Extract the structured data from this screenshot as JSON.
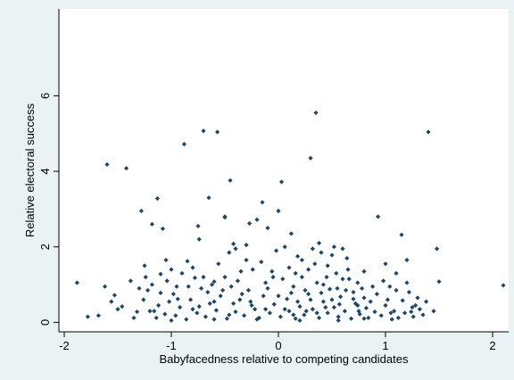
{
  "chart_data": {
    "type": "scatter",
    "title": "",
    "xlabel": "Babyfacedness relative to competing candidates",
    "ylabel": "Relative electoral success",
    "xlim": [
      -2.05,
      2.15
    ],
    "ylim": [
      -0.25,
      8.3
    ],
    "xticks": [
      -2,
      -1,
      0,
      1,
      2
    ],
    "yticks": [
      0,
      2,
      4,
      6
    ],
    "grid": false,
    "legend": "none",
    "colors": {
      "marker": "#1a476f",
      "frame_background": "#eaf2f3",
      "plot_background": "#ffffff",
      "axis": "#000000"
    },
    "series": [
      {
        "points": [
          [
            -1.88,
            1.05
          ],
          [
            -1.78,
            0.15
          ],
          [
            -1.68,
            0.18
          ],
          [
            -1.6,
            4.18
          ],
          [
            -1.56,
            0.55
          ],
          [
            -1.53,
            0.72
          ],
          [
            -1.5,
            0.35
          ],
          [
            -1.42,
            4.08
          ],
          [
            -1.38,
            1.1
          ],
          [
            -1.35,
            0.12
          ],
          [
            -1.32,
            0.28
          ],
          [
            -1.28,
            2.95
          ],
          [
            -1.25,
            1.5
          ],
          [
            -1.22,
            0.85
          ],
          [
            -1.18,
            2.6
          ],
          [
            -1.16,
            0.3
          ],
          [
            -1.13,
            3.28
          ],
          [
            -1.1,
            1.28
          ],
          [
            -1.08,
            2.48
          ],
          [
            -1.05,
            1.65
          ],
          [
            -1.0,
            1.4
          ],
          [
            -0.95,
            0.95
          ],
          [
            -0.88,
            4.72
          ],
          [
            -0.85,
            1.62
          ],
          [
            -0.78,
            1.18
          ],
          [
            -0.75,
            2.55
          ],
          [
            -0.74,
            2.2
          ],
          [
            -0.7,
            5.07
          ],
          [
            -0.65,
            3.3
          ],
          [
            -0.6,
            1.08
          ],
          [
            -0.57,
            5.04
          ],
          [
            -0.5,
            2.78
          ],
          [
            -0.45,
            3.76
          ],
          [
            -0.42,
            2.08
          ],
          [
            -0.35,
            1.35
          ],
          [
            -0.3,
            1.65
          ],
          [
            -0.27,
            2.62
          ],
          [
            -0.25,
            0.45
          ],
          [
            -0.2,
            2.72
          ],
          [
            -0.15,
            3.18
          ],
          [
            -0.12,
            1.05
          ],
          [
            -0.1,
            2.5
          ],
          [
            -0.05,
            1.2
          ],
          [
            0.0,
            2.95
          ],
          [
            0.03,
            3.72
          ],
          [
            0.06,
            2.0
          ],
          [
            0.12,
            2.35
          ],
          [
            0.18,
            1.75
          ],
          [
            0.22,
            1.2
          ],
          [
            0.25,
            0.85
          ],
          [
            0.3,
            4.35
          ],
          [
            0.35,
            5.55
          ],
          [
            0.4,
            1.85
          ],
          [
            0.45,
            1.2
          ],
          [
            0.5,
            1.78
          ],
          [
            0.55,
            0.9
          ],
          [
            0.6,
            1.95
          ],
          [
            0.65,
            1.4
          ],
          [
            0.7,
            0.8
          ],
          [
            0.75,
            0.3
          ],
          [
            0.8,
            0.65
          ],
          [
            0.88,
            0.95
          ],
          [
            0.93,
            2.8
          ],
          [
            0.98,
            1.1
          ],
          [
            1.02,
            0.6
          ],
          [
            1.05,
            0.25
          ],
          [
            1.1,
            0.85
          ],
          [
            1.15,
            2.32
          ],
          [
            1.2,
            1.65
          ],
          [
            1.25,
            0.4
          ],
          [
            1.3,
            0.65
          ],
          [
            1.35,
            0.2
          ],
          [
            1.4,
            5.04
          ],
          [
            1.45,
            0.3
          ],
          [
            1.48,
            1.95
          ],
          [
            1.5,
            1.08
          ],
          [
            2.1,
            0.98
          ],
          [
            -1.2,
            0.3
          ],
          [
            -1.14,
            0.12
          ],
          [
            -1.06,
            0.22
          ],
          [
            -1.02,
            0.55
          ],
          [
            -0.96,
            0.18
          ],
          [
            -0.92,
            0.4
          ],
          [
            -0.86,
            0.08
          ],
          [
            -0.82,
            0.6
          ],
          [
            -0.76,
            0.25
          ],
          [
            -0.72,
            0.9
          ],
          [
            -0.68,
            0.15
          ],
          [
            -0.64,
            0.5
          ],
          [
            -0.58,
            0.32
          ],
          [
            -0.54,
            0.7
          ],
          [
            -0.48,
            0.1
          ],
          [
            -0.44,
            0.95
          ],
          [
            -0.4,
            0.28
          ],
          [
            -0.36,
            0.6
          ],
          [
            -0.32,
            0.18
          ],
          [
            -0.28,
            0.85
          ],
          [
            -0.22,
            0.35
          ],
          [
            -0.18,
            0.12
          ],
          [
            -0.14,
            0.7
          ],
          [
            -0.08,
            0.25
          ],
          [
            -0.04,
            0.48
          ],
          [
            0.02,
            0.15
          ],
          [
            0.08,
            0.62
          ],
          [
            0.1,
            0.3
          ],
          [
            0.14,
            0.95
          ],
          [
            0.16,
            0.1
          ],
          [
            0.2,
            0.42
          ],
          [
            0.24,
            0.2
          ],
          [
            0.28,
            0.75
          ],
          [
            0.32,
            0.35
          ],
          [
            0.36,
            1.05
          ],
          [
            0.38,
            0.12
          ],
          [
            0.42,
            0.55
          ],
          [
            0.46,
            0.25
          ],
          [
            0.48,
            0.88
          ],
          [
            0.52,
            0.4
          ],
          [
            0.56,
            0.15
          ],
          [
            0.58,
            0.68
          ],
          [
            0.62,
            0.3
          ],
          [
            0.66,
            1.15
          ],
          [
            0.68,
            0.1
          ],
          [
            0.72,
            0.5
          ],
          [
            0.76,
            0.22
          ],
          [
            0.78,
            0.9
          ],
          [
            0.82,
            0.38
          ],
          [
            0.84,
            0.12
          ],
          [
            0.86,
            0.55
          ],
          [
            0.9,
            0.28
          ],
          [
            0.92,
            0.75
          ],
          [
            0.96,
            0.18
          ],
          [
            1.0,
            0.45
          ],
          [
            1.04,
            0.95
          ],
          [
            1.08,
            0.3
          ],
          [
            1.12,
            0.12
          ],
          [
            1.16,
            0.58
          ],
          [
            1.18,
            0.25
          ],
          [
            1.22,
            0.8
          ],
          [
            1.26,
            0.15
          ],
          [
            1.28,
            0.45
          ],
          [
            1.32,
            0.35
          ],
          [
            1.38,
            0.55
          ],
          [
            -1.26,
            0.6
          ],
          [
            -1.18,
            1.0
          ],
          [
            -1.1,
            0.78
          ],
          [
            -1.04,
            1.1
          ],
          [
            -0.98,
            0.75
          ],
          [
            -0.9,
            1.3
          ],
          [
            -0.84,
            0.95
          ],
          [
            -0.8,
            1.45
          ],
          [
            -0.7,
            1.2
          ],
          [
            -0.62,
            1.0
          ],
          [
            -0.56,
            1.55
          ],
          [
            -0.5,
            1.2
          ],
          [
            -0.46,
            1.85
          ],
          [
            -0.38,
            1.1
          ],
          [
            -0.34,
            0.75
          ],
          [
            -0.24,
            1.4
          ],
          [
            -0.16,
            1.6
          ],
          [
            -0.06,
            1.35
          ],
          [
            0.04,
            1.15
          ],
          [
            0.1,
            1.45
          ],
          [
            0.16,
            1.3
          ],
          [
            0.22,
            1.65
          ],
          [
            0.28,
            1.4
          ],
          [
            0.34,
            1.55
          ],
          [
            0.42,
            1.0
          ],
          [
            0.46,
            1.5
          ],
          [
            0.54,
            1.3
          ],
          [
            0.6,
            1.15
          ],
          [
            0.64,
            1.7
          ],
          [
            0.74,
            1.05
          ],
          [
            0.8,
            1.35
          ],
          [
            1.0,
            1.55
          ],
          [
            1.1,
            1.3
          ],
          [
            1.2,
            1.05
          ],
          [
            -0.66,
            0.8
          ],
          [
            -0.6,
            0.55
          ],
          [
            -0.52,
            0.85
          ],
          [
            -0.42,
            0.5
          ],
          [
            -0.26,
            0.55
          ],
          [
            -0.1,
            0.9
          ],
          [
            0.0,
            0.7
          ],
          [
            0.06,
            0.35
          ],
          [
            0.12,
            0.78
          ],
          [
            0.18,
            0.55
          ],
          [
            0.26,
            0.3
          ],
          [
            0.3,
            0.6
          ],
          [
            0.4,
            0.78
          ],
          [
            0.44,
            0.4
          ],
          [
            0.5,
            0.6
          ],
          [
            0.57,
            0.48
          ],
          [
            0.63,
            0.85
          ],
          [
            0.7,
            0.62
          ],
          [
            0.74,
            0.45
          ],
          [
            -0.02,
            1.9
          ],
          [
            -0.3,
            2.05
          ],
          [
            0.52,
            2.0
          ],
          [
            0.38,
            2.1
          ],
          [
            -0.5,
            2.8
          ],
          [
            -0.4,
            1.95
          ],
          [
            0.32,
            1.95
          ],
          [
            -0.8,
            0.35
          ],
          [
            -0.94,
            0.62
          ],
          [
            -1.3,
            0.9
          ],
          [
            -1.24,
            1.2
          ],
          [
            -1.12,
            0.45
          ],
          [
            -0.74,
            0.42
          ],
          [
            -0.46,
            0.2
          ],
          [
            -0.2,
            0.08
          ],
          [
            0.2,
            0.05
          ],
          [
            0.56,
            0.05
          ],
          [
            0.8,
            0.1
          ],
          [
            1.06,
            0.08
          ],
          [
            -1.0,
            0.05
          ],
          [
            -0.6,
            0.08
          ],
          [
            1.24,
            0.28
          ],
          [
            -1.46,
            0.42
          ],
          [
            -1.62,
            0.95
          ],
          [
            -0.12,
            0.35
          ],
          [
            0.14,
            0.2
          ],
          [
            0.36,
            0.25
          ]
        ]
      }
    ]
  }
}
